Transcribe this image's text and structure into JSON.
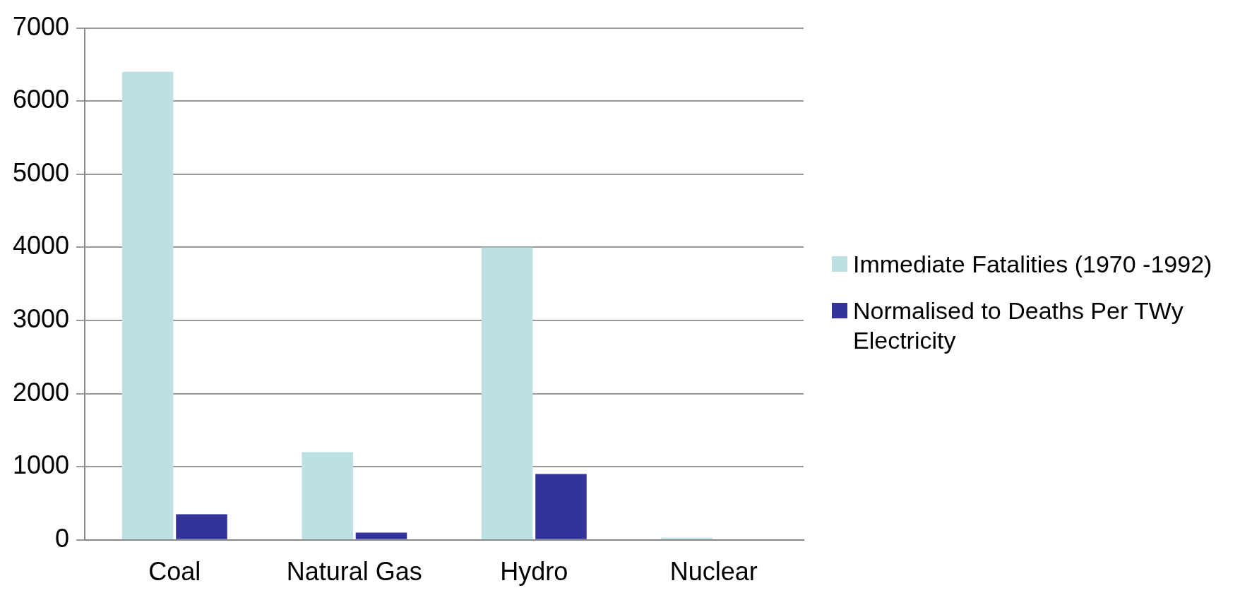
{
  "chart_data": {
    "type": "bar",
    "categories": [
      "Coal",
      "Natural Gas",
      "Hydro",
      "Nuclear"
    ],
    "series": [
      {
        "name": "Immediate Fatalities (1970 -1992)",
        "color": "#bde0e3",
        "values": [
          6400,
          1200,
          4000,
          30
        ]
      },
      {
        "name": "Normalised to Deaths Per TWy Electricity",
        "color": "#333399",
        "values": [
          350,
          100,
          900,
          null
        ]
      }
    ],
    "ylim": [
      0,
      7000
    ],
    "yticks": [
      0,
      1000,
      2000,
      3000,
      4000,
      5000,
      6000,
      7000
    ],
    "grid": "y",
    "legend": "right"
  }
}
